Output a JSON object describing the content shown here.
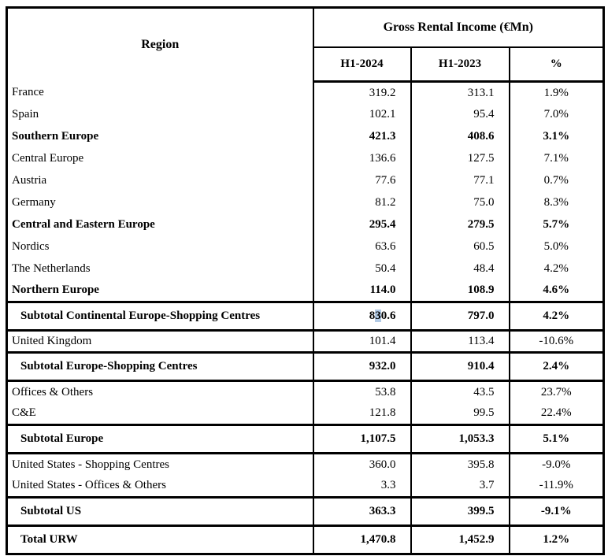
{
  "colors": {
    "border": "#000000",
    "text": "#000000",
    "background": "#ffffff",
    "selection_highlight": "#b3cbe6"
  },
  "table": {
    "header": {
      "region_label": "Region",
      "group_label": "Gross Rental Income (€Mn)",
      "columns": [
        "H1-2024",
        "H1-2023",
        "%"
      ]
    },
    "rows": [
      {
        "region": "France",
        "h1_2024": "319.2",
        "h1_2023": "313.1",
        "pct": "1.9%",
        "style": "normal"
      },
      {
        "region": "Spain",
        "h1_2024": "102.1",
        "h1_2023": "95.4",
        "pct": "7.0%",
        "style": "normal"
      },
      {
        "region": "Southern Europe",
        "h1_2024": "421.3",
        "h1_2023": "408.6",
        "pct": "3.1%",
        "style": "group-total"
      },
      {
        "region": "Central Europe",
        "h1_2024": "136.6",
        "h1_2023": "127.5",
        "pct": "7.1%",
        "style": "normal"
      },
      {
        "region": "Austria",
        "h1_2024": "77.6",
        "h1_2023": "77.1",
        "pct": "0.7%",
        "style": "normal"
      },
      {
        "region": "Germany",
        "h1_2024": "81.2",
        "h1_2023": "75.0",
        "pct": "8.3%",
        "style": "normal"
      },
      {
        "region": "Central and Eastern Europe",
        "h1_2024": "295.4",
        "h1_2023": "279.5",
        "pct": "5.7%",
        "style": "group-total"
      },
      {
        "region": "Nordics",
        "h1_2024": "63.6",
        "h1_2023": "60.5",
        "pct": "5.0%",
        "style": "normal"
      },
      {
        "region": "The Netherlands",
        "h1_2024": "50.4",
        "h1_2023": "48.4",
        "pct": "4.2%",
        "style": "normal"
      },
      {
        "region": "Northern Europe",
        "h1_2024": "114.0",
        "h1_2023": "108.9",
        "pct": "4.6%",
        "style": "group-total"
      },
      {
        "region": "Subtotal Continental Europe-Shopping Centres",
        "h1_2024": "830.6",
        "h1_2023": "797.0",
        "pct": "4.2%",
        "style": "subtotal",
        "highlight": {
          "col": "h1_2024",
          "pre": "8",
          "mark": "3",
          "post": "0.6"
        }
      },
      {
        "region": "United Kingdom",
        "h1_2024": "101.4",
        "h1_2023": "113.4",
        "pct": "-10.6%",
        "style": "normal"
      },
      {
        "region": "Subtotal Europe-Shopping Centres",
        "h1_2024": "932.0",
        "h1_2023": "910.4",
        "pct": "2.4%",
        "style": "subtotal"
      },
      {
        "region": "Offices & Others",
        "h1_2024": "53.8",
        "h1_2023": "43.5",
        "pct": "23.7%",
        "style": "normal"
      },
      {
        "region": "C&E",
        "h1_2024": "121.8",
        "h1_2023": "99.5",
        "pct": "22.4%",
        "style": "normal"
      },
      {
        "region": "Subtotal Europe",
        "h1_2024": "1,107.5",
        "h1_2023": "1,053.3",
        "pct": "5.1%",
        "style": "subtotal"
      },
      {
        "region": "United States - Shopping Centres",
        "h1_2024": "360.0",
        "h1_2023": "395.8",
        "pct": "-9.0%",
        "style": "normal"
      },
      {
        "region": "United States - Offices & Others",
        "h1_2024": "3.3",
        "h1_2023": "3.7",
        "pct": "-11.9%",
        "style": "normal"
      },
      {
        "region": "Subtotal US",
        "h1_2024": "363.3",
        "h1_2023": "399.5",
        "pct": "-9.1%",
        "style": "subtotal"
      },
      {
        "region": "Total URW",
        "h1_2024": "1,470.8",
        "h1_2023": "1,452.9",
        "pct": "1.2%",
        "style": "subtotal"
      }
    ]
  }
}
